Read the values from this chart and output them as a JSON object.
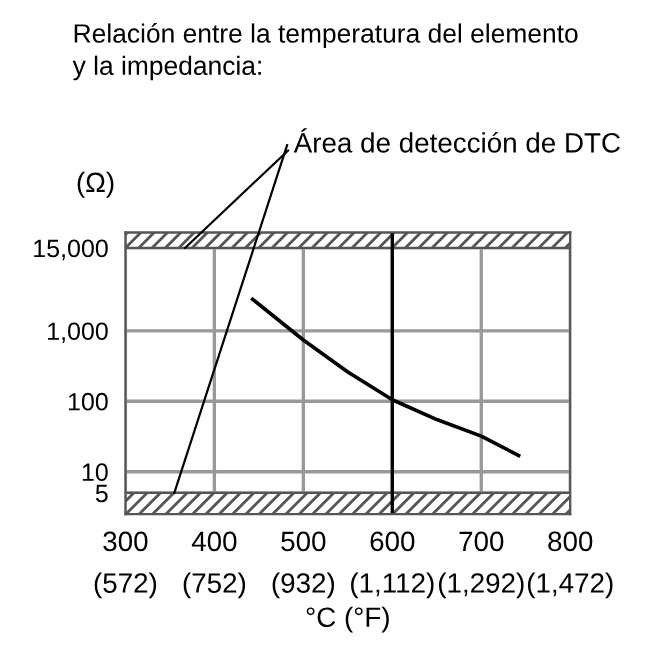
{
  "chart_data": {
    "type": "line",
    "title": "Relación entre la temperatura del elemento\ny la impedancia:",
    "ylabel": "(Ω)",
    "xlabel": "°C (°F)",
    "x": [
      443,
      500,
      550,
      600,
      650,
      700,
      742
    ],
    "series": [
      {
        "color": "#000000",
        "values": [
          2800,
          740,
          260,
          105,
          55,
          32,
          17
        ]
      }
    ],
    "log": "y",
    "xlim": [
      300,
      800
    ],
    "ylim": [
      2.5,
      25000
    ],
    "xticks": [
      300,
      400,
      500,
      600,
      700,
      800
    ],
    "x2lim": [
      572,
      1472
    ],
    "x2ticks": [
      {
        "value": 572,
        "label": "(572)"
      },
      {
        "value": 752,
        "label": "(752)"
      },
      {
        "value": 932,
        "label": "(932)"
      },
      {
        "value": 1112,
        "label": "(1,112)"
      },
      {
        "value": 1292,
        "label": "(1,292)"
      },
      {
        "value": 1472,
        "label": "(1,472)"
      }
    ],
    "yticks": [
      5,
      10,
      100,
      {
        "value": 1000,
        "label": "1,000"
      },
      {
        "value": 15000,
        "label": "15,000"
      }
    ],
    "grid": true,
    "ref_lines": [
      {
        "axis": "x",
        "value": 600,
        "color": "#000000"
      }
    ],
    "bands": [
      {
        "axis": "y",
        "from": 2.5,
        "to": 5
      },
      {
        "axis": "y",
        "from": 15000,
        "to": 25000
      }
    ],
    "annotations": [
      {
        "text": "Área de detección de DTC",
        "x": 367,
        "y": 15000
      }
    ]
  }
}
